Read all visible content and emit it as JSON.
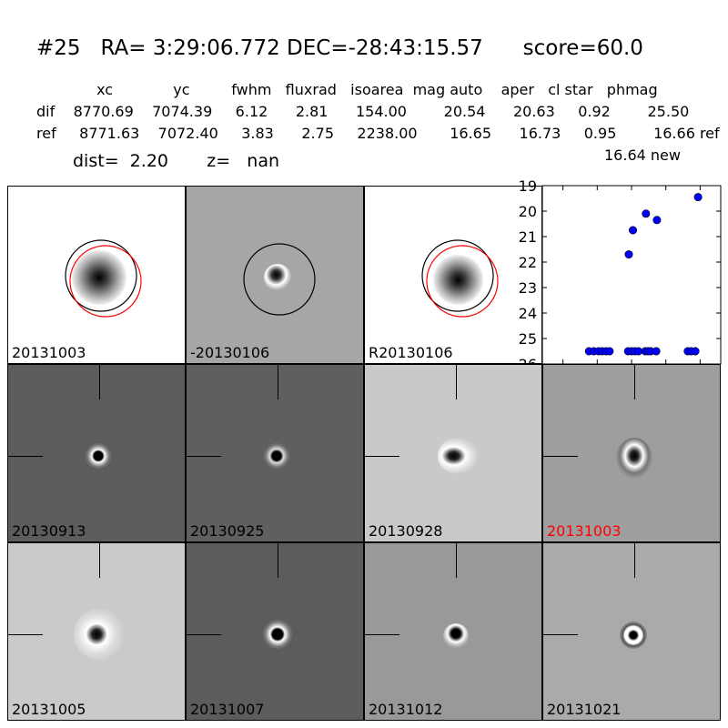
{
  "header": {
    "title": "#25   RA= 3:29:06.772 DEC=-28:43:15.57      score=60.0",
    "columns_line": "             xc             yc         fwhm   fluxrad   isoarea  mag auto    aper   cl star   phmag",
    "dif_line": "dif    8770.69    7074.39     6.12      2.81      154.00        20.54      20.63     0.92        25.50",
    "ref_line": "ref     8771.63    7072.40     3.83      2.75     2238.00       16.65      16.73     0.95        16.66 ref",
    "new_line": "16.64 new",
    "dist_line": "dist=  2.20       z=   nan"
  },
  "stamps": [
    {
      "label": "20131003",
      "style": "white",
      "circles": true
    },
    {
      "label": "-20130106",
      "style": "gray",
      "circles": "black-only"
    },
    {
      "label": "R20130106",
      "style": "white",
      "circles": true
    },
    {
      "label": "20130913",
      "style": "dark"
    },
    {
      "label": "20130925",
      "style": "dark"
    },
    {
      "label": "20130928",
      "style": "light"
    },
    {
      "label": "20131003",
      "style": "mid",
      "label_color": "#ff0000"
    },
    {
      "label": "20131005",
      "style": "light"
    },
    {
      "label": "20131007",
      "style": "dark"
    },
    {
      "label": "20131012",
      "style": "mid"
    },
    {
      "label": "20131021",
      "style": "mid"
    }
  ],
  "colors": {
    "marker": "#0000ff",
    "highlight_label": "#ff0000",
    "circle_ref": "#000000",
    "circle_new": "#ff0000"
  },
  "chart_data": {
    "type": "scatter",
    "title": "",
    "xlabel": "",
    "ylabel": "",
    "xlim": [
      -130,
      130
    ],
    "ylim": [
      26,
      19
    ],
    "yaxis_inverted": true,
    "xticks": [
      -100,
      -50,
      0,
      50,
      100
    ],
    "yticks": [
      19,
      20,
      21,
      22,
      23,
      24,
      25,
      26
    ],
    "grid": false,
    "series": [
      {
        "points": [
          [
            -62,
            25.5
          ],
          [
            -55,
            25.5
          ],
          [
            -48,
            25.5
          ],
          [
            -43,
            25.5
          ],
          [
            -37,
            25.5
          ],
          [
            -32,
            25.5
          ],
          [
            -5,
            25.5
          ],
          [
            0,
            25.5
          ],
          [
            5,
            25.5
          ],
          [
            10,
            25.5
          ],
          [
            20,
            25.5
          ],
          [
            24,
            25.5
          ],
          [
            28,
            25.5
          ],
          [
            36,
            25.5
          ],
          [
            -4,
            21.7
          ],
          [
            2,
            20.75
          ],
          [
            21,
            20.1
          ],
          [
            37,
            20.35
          ],
          [
            97,
            19.45
          ],
          [
            82,
            25.5
          ],
          [
            87,
            25.5
          ],
          [
            93,
            25.5
          ]
        ]
      }
    ]
  }
}
